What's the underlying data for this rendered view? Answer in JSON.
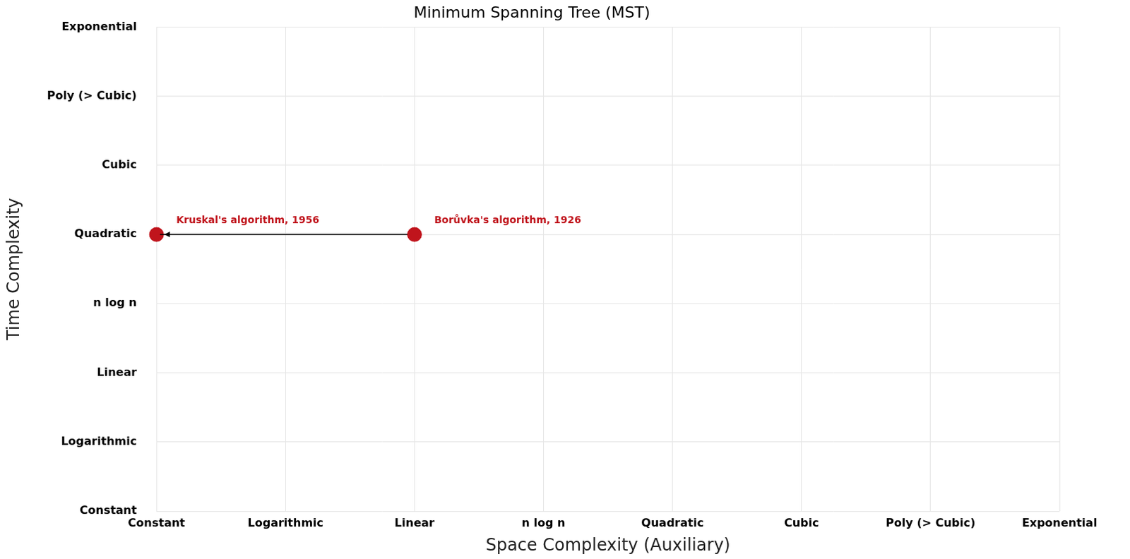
{
  "chart_data": {
    "type": "scatter",
    "title": "Minimum Spanning Tree (MST)",
    "x_label": "Space Complexity (Auxiliary)",
    "y_label": "Time Complexity",
    "x_categories": [
      "Constant",
      "Logarithmic",
      "Linear",
      "n log n",
      "Quadratic",
      "Cubic",
      "Poly (> Cubic)",
      "Exponential"
    ],
    "y_categories": [
      "Constant",
      "Logarithmic",
      "Linear",
      "n log n",
      "Quadratic",
      "Cubic",
      "Poly (> Cubic)",
      "Exponential"
    ],
    "points": [
      {
        "label": "Borůvka's algorithm, 1926",
        "x": "Linear",
        "y": "Quadratic"
      },
      {
        "label": "Kruskal's algorithm, 1956",
        "x": "Constant",
        "y": "Quadratic"
      }
    ],
    "arrows": [
      {
        "from": "Borůvka's algorithm, 1926",
        "to": "Kruskal's algorithm, 1956"
      }
    ],
    "color": "#c0141c",
    "marker": "circle",
    "grid": true
  }
}
